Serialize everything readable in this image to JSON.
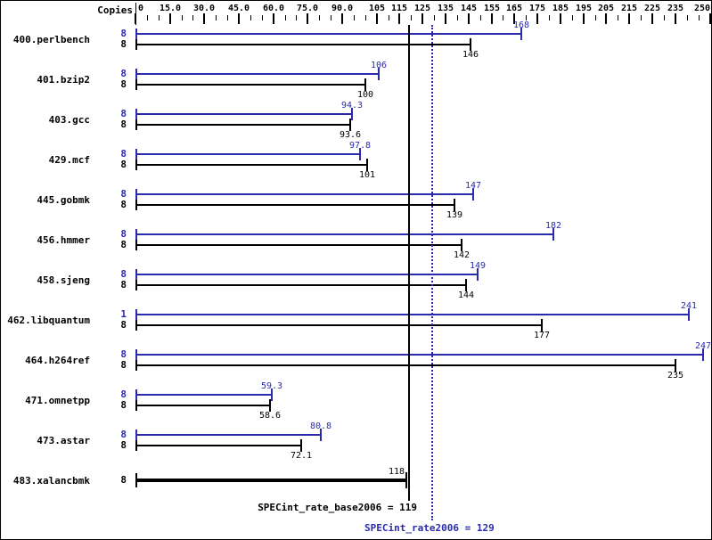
{
  "chart_data": {
    "type": "bar",
    "orientation": "horizontal",
    "copies_header": "Copies",
    "axis": {
      "position": "top",
      "min": 0,
      "max": 250,
      "minor_tick_step": 5,
      "ticks": [
        {
          "value": 0,
          "label": "0"
        },
        {
          "value": 15,
          "label": "15.0"
        },
        {
          "value": 30,
          "label": "30.0"
        },
        {
          "value": 45,
          "label": "45.0"
        },
        {
          "value": 60,
          "label": "60.0"
        },
        {
          "value": 75,
          "label": "75.0"
        },
        {
          "value": 90,
          "label": "90.0"
        },
        {
          "value": 105,
          "label": "105"
        },
        {
          "value": 115,
          "label": "115"
        },
        {
          "value": 125,
          "label": "125"
        },
        {
          "value": 135,
          "label": "135"
        },
        {
          "value": 145,
          "label": "145"
        },
        {
          "value": 155,
          "label": "155"
        },
        {
          "value": 165,
          "label": "165"
        },
        {
          "value": 175,
          "label": "175"
        },
        {
          "value": 185,
          "label": "185"
        },
        {
          "value": 195,
          "label": "195"
        },
        {
          "value": 205,
          "label": "205"
        },
        {
          "value": 215,
          "label": "215"
        },
        {
          "value": 225,
          "label": "225"
        },
        {
          "value": 235,
          "label": "235"
        },
        {
          "value": 250,
          "label": "250"
        }
      ]
    },
    "benchmarks": [
      {
        "name": "400.perlbench",
        "peak": {
          "copies": "8",
          "value": 168,
          "label": "168"
        },
        "base": {
          "copies": "8",
          "value": 146,
          "label": "146"
        }
      },
      {
        "name": "401.bzip2",
        "peak": {
          "copies": "8",
          "value": 106,
          "label": "106"
        },
        "base": {
          "copies": "8",
          "value": 100,
          "label": "100"
        }
      },
      {
        "name": "403.gcc",
        "peak": {
          "copies": "8",
          "value": 94.3,
          "label": "94.3"
        },
        "base": {
          "copies": "8",
          "value": 93.6,
          "label": "93.6"
        }
      },
      {
        "name": "429.mcf",
        "peak": {
          "copies": "8",
          "value": 97.8,
          "label": "97.8"
        },
        "base": {
          "copies": "8",
          "value": 101,
          "label": "101"
        }
      },
      {
        "name": "445.gobmk",
        "peak": {
          "copies": "8",
          "value": 147,
          "label": "147"
        },
        "base": {
          "copies": "8",
          "value": 139,
          "label": "139"
        }
      },
      {
        "name": "456.hmmer",
        "peak": {
          "copies": "8",
          "value": 182,
          "label": "182"
        },
        "base": {
          "copies": "8",
          "value": 142,
          "label": "142"
        }
      },
      {
        "name": "458.sjeng",
        "peak": {
          "copies": "8",
          "value": 149,
          "label": "149"
        },
        "base": {
          "copies": "8",
          "value": 144,
          "label": "144"
        }
      },
      {
        "name": "462.libquantum",
        "peak": {
          "copies": "1",
          "value": 241,
          "label": "241"
        },
        "base": {
          "copies": "8",
          "value": 177,
          "label": "177"
        }
      },
      {
        "name": "464.h264ref",
        "peak": {
          "copies": "8",
          "value": 247,
          "label": "247"
        },
        "base": {
          "copies": "8",
          "value": 235,
          "label": "235"
        }
      },
      {
        "name": "471.omnetpp",
        "peak": {
          "copies": "8",
          "value": 59.3,
          "label": "59.3"
        },
        "base": {
          "copies": "8",
          "value": 58.6,
          "label": "58.6"
        }
      },
      {
        "name": "473.astar",
        "peak": {
          "copies": "8",
          "value": 80.8,
          "label": "80.8"
        },
        "base": {
          "copies": "8",
          "value": 72.1,
          "label": "72.1"
        }
      },
      {
        "name": "483.xalancbmk",
        "single": {
          "copies": "8",
          "value": 118,
          "label": "118",
          "label_dx": -11
        }
      }
    ],
    "reference_lines": [
      {
        "name": "base",
        "value": 119,
        "label": "SPECint_rate_base2006 = 119",
        "style": "solid",
        "color": "#000000"
      },
      {
        "name": "peak",
        "value": 129,
        "label": "SPECint_rate2006 = 129",
        "style": "dotted",
        "color": "#2a2aad"
      }
    ],
    "colors": {
      "peak": "#2a2aad",
      "base": "#000000",
      "background": "#ffffff",
      "border": "#000000"
    }
  }
}
